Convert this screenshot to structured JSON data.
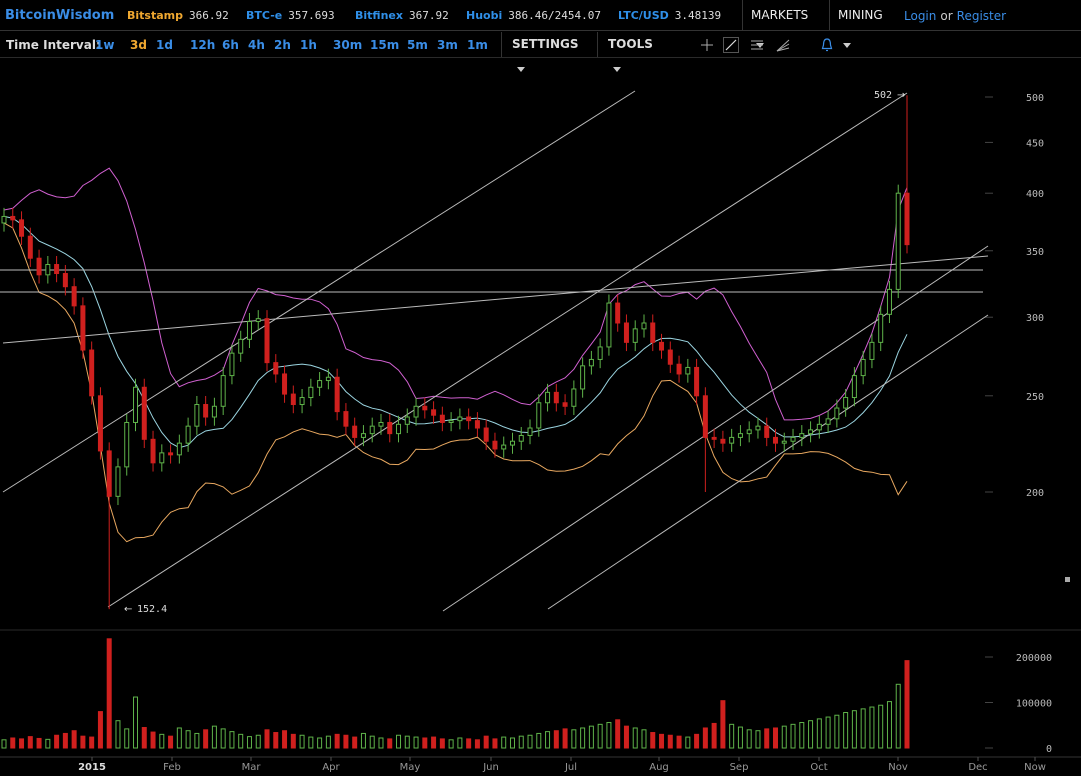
{
  "header": {
    "brand": "BitcoinWisdom",
    "tickers": [
      {
        "name": "Bitstamp",
        "value": "366.92",
        "current": true
      },
      {
        "name": "BTC-e",
        "value": "357.693",
        "current": false
      },
      {
        "name": "Bitfinex",
        "value": "367.92",
        "current": false
      },
      {
        "name": "Huobi",
        "value": "386.46/2454.07",
        "current": false
      },
      {
        "name": "LTC/USD",
        "value": "3.48139",
        "current": false
      }
    ],
    "markets_label": "MARKETS",
    "mining_label": "MINING",
    "login_label": "Login",
    "or_label": "or",
    "register_label": "Register"
  },
  "toolbar": {
    "time_interval_label": "Time Interval:",
    "intervals": [
      "1w",
      "3d",
      "1d",
      "12h",
      "6h",
      "4h",
      "2h",
      "1h",
      "30m",
      "15m",
      "5m",
      "3m",
      "1m"
    ],
    "active_interval": "3d",
    "settings_label": "SETTINGS",
    "tools_label": "TOOLS",
    "tool_icons": [
      "crosshair-icon",
      "line-tool-icon",
      "horizontal-lines-icon",
      "fan-tool-icon",
      "bell-alert-icon"
    ]
  },
  "colors": {
    "brand": "#3a8de6",
    "active": "#f0a830",
    "up": "#5fb34a",
    "down": "#d0201e",
    "band_upper": "#d060d0",
    "band_lower": "#e8a860",
    "ma": "#9ad4e0"
  },
  "chart_data": {
    "type": "candlestick",
    "price_axis": {
      "ticks": [
        500,
        450,
        400,
        350,
        300,
        250,
        200
      ],
      "scale": "log"
    },
    "volume_axis": {
      "ticks": [
        "200000",
        "100000",
        "0"
      ]
    },
    "x_tick_labels": [
      "2015",
      "Feb",
      "Mar",
      "Apr",
      "May",
      "Jun",
      "Jul",
      "Aug",
      "Sep",
      "Oct",
      "Nov",
      "Dec",
      "Now"
    ],
    "annotations": {
      "high": "502",
      "low": "152.4"
    },
    "close": [
      379,
      376,
      362,
      344,
      331,
      339,
      332,
      322,
      308,
      278,
      250,
      220,
      198,
      212,
      235,
      255,
      226,
      214,
      219,
      218,
      224,
      233,
      245,
      238,
      244,
      262,
      276,
      285,
      297,
      299,
      270,
      263,
      251,
      245,
      249,
      255,
      259,
      261,
      241,
      233,
      227,
      229,
      233,
      235,
      229,
      234,
      238,
      244,
      242,
      239,
      235,
      236,
      238,
      236,
      232,
      225,
      221,
      223,
      225,
      228,
      232,
      246,
      252,
      246,
      244,
      254,
      268,
      272,
      280,
      310,
      296,
      283,
      292,
      296,
      283,
      278,
      269,
      263,
      267,
      250,
      227,
      226,
      224,
      227,
      229,
      231,
      233,
      227,
      224,
      225,
      227,
      229,
      231,
      234,
      237,
      243,
      249,
      262,
      272,
      283,
      302,
      320,
      400,
      355
    ],
    "volumes": [
      18000,
      22000,
      20000,
      25000,
      21000,
      19000,
      28000,
      32000,
      38000,
      26000,
      24000,
      80000,
      240000,
      60000,
      42000,
      112000,
      45000,
      35000,
      30000,
      26000,
      44000,
      38000,
      32000,
      40000,
      48000,
      42000,
      36000,
      30000,
      25000,
      28000,
      40000,
      34000,
      38000,
      30000,
      28000,
      24000,
      22000,
      26000,
      30000,
      28000,
      24000,
      32000,
      26000,
      22000,
      20000,
      28000,
      26000,
      24000,
      22000,
      24000,
      20000,
      18000,
      22000,
      20000,
      18000,
      26000,
      20000,
      24000,
      22000,
      26000,
      28000,
      32000,
      36000,
      38000,
      42000,
      40000,
      44000,
      48000,
      52000,
      56000,
      62000,
      48000,
      44000,
      40000,
      34000,
      30000,
      28000,
      26000,
      24000,
      30000,
      44000,
      54000,
      104000,
      52000,
      46000,
      40000,
      38000,
      42000,
      44000,
      48000,
      52000,
      56000,
      60000,
      64000,
      68000,
      72000,
      78000,
      82000,
      86000,
      90000,
      94000,
      102000,
      140000,
      192000
    ]
  }
}
